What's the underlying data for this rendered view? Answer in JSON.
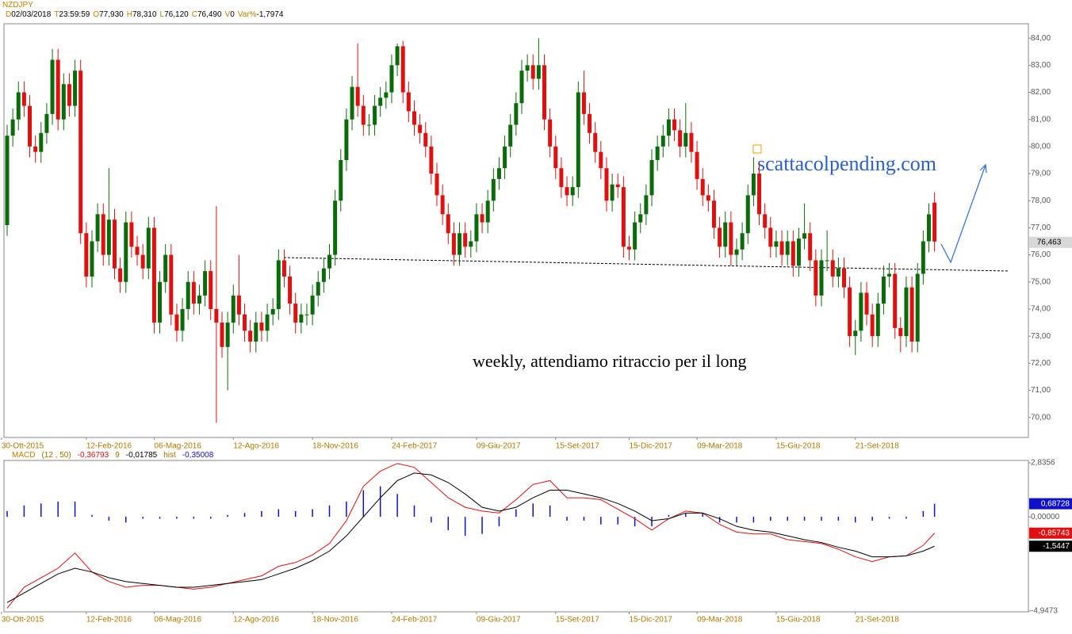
{
  "header": {
    "symbol": "NZDJPY",
    "fields": [
      {
        "key": "D",
        "value": "02/03/2018"
      },
      {
        "key": "T",
        "value": "23:59:59"
      },
      {
        "key": "O",
        "value": "77,930"
      },
      {
        "key": "H",
        "value": "78,310"
      },
      {
        "key": "L",
        "value": "76,120"
      },
      {
        "key": "C",
        "value": "76,490"
      },
      {
        "key": "V",
        "value": "0"
      },
      {
        "key": "Var%",
        "value": "-1,7974"
      }
    ]
  },
  "annotations": {
    "watermark": "scattacolpending.com",
    "note": "weekly, attendiamo ritraccio per il long"
  },
  "chart_data": [
    {
      "type": "candlestick",
      "up_color": "#0b6b0b",
      "down_color": "#e01010",
      "xlim": [
        -0.56,
        180.6
      ],
      "xticks": [
        {
          "value": -1,
          "label": "30-Ott-2015"
        },
        {
          "value": 14,
          "label": "12-Feb-2016"
        },
        {
          "value": 26,
          "label": "06-Mag-2016"
        },
        {
          "value": 40,
          "label": "12-Ago-2016"
        },
        {
          "value": 54,
          "label": "18-Nov-2016"
        },
        {
          "value": 68,
          "label": "24-Feb-2017"
        },
        {
          "value": 83,
          "label": "09-Giu-2017"
        },
        {
          "value": 97,
          "label": "15-Set-2017"
        },
        {
          "value": 110,
          "label": "15-Dic-2017"
        },
        {
          "value": 122,
          "label": "09-Mar-2018"
        },
        {
          "value": 136,
          "label": "15-Giu-2018"
        },
        {
          "value": 150,
          "label": "21-Set-2018"
        }
      ],
      "ylim": [
        69.26,
        84.53
      ],
      "yticks": [
        {
          "value": 70,
          "label": "70,00"
        },
        {
          "value": 71,
          "label": "71,00"
        },
        {
          "value": 72,
          "label": "72,00"
        },
        {
          "value": 73,
          "label": "73,00"
        },
        {
          "value": 74,
          "label": "74,00"
        },
        {
          "value": 75,
          "label": "75,00"
        },
        {
          "value": 76,
          "label": "76,00"
        },
        {
          "value": 77,
          "label": "77,00"
        },
        {
          "value": 78,
          "label": "78,00"
        },
        {
          "value": 79,
          "label": "79,00"
        },
        {
          "value": 80,
          "label": "80,00"
        },
        {
          "value": 81,
          "label": "81,00"
        },
        {
          "value": 82,
          "label": "82,00"
        },
        {
          "value": 83,
          "label": "83,00"
        },
        {
          "value": 84,
          "label": "84,00"
        }
      ],
      "price_marker": {
        "value": 76.463,
        "label": "76,463"
      },
      "open": [
        77.1,
        80.4,
        81.0,
        82.0,
        81.5,
        80.0,
        79.8,
        80.5,
        81.2,
        83.2,
        81.0,
        82.3,
        81.5,
        82.8,
        76.8,
        75.2,
        76.5,
        77.5,
        76.0,
        77.3,
        75.5,
        75.0,
        77.2,
        76.3,
        76.0,
        75.5,
        77.0,
        73.5,
        75.0,
        76.0,
        73.8,
        73.2,
        74.0,
        75.0,
        74.2,
        74.5,
        75.4,
        74.0,
        73.5,
        72.6,
        73.5,
        74.5,
        73.8,
        73.2,
        72.8,
        73.5,
        73.2,
        73.8,
        74.0,
        75.8,
        75.2,
        74.2,
        73.5,
        73.8,
        73.8,
        74.5,
        75.0,
        75.5,
        76.0,
        78.0,
        79.5,
        81.0,
        82.2,
        81.5,
        80.8,
        80.8,
        81.5,
        81.8,
        82.0,
        83.0,
        83.7,
        82.0,
        81.3,
        80.8,
        80.5,
        80.0,
        79.0,
        78.2,
        77.5,
        76.8,
        76.0,
        76.8,
        76.3,
        76.5,
        77.5,
        77.2,
        78.0,
        78.8,
        79.2,
        80.0,
        80.8,
        81.6,
        82.8,
        83.0,
        82.5,
        83.0,
        81.0,
        80.0,
        79.2,
        78.5,
        78.2,
        78.5,
        82.0,
        81.2,
        80.5,
        79.8,
        79.2,
        78.0,
        78.6,
        78.5,
        76.3,
        76.2,
        77.2,
        77.5,
        78.2,
        79.5,
        80.0,
        80.4,
        81.0,
        80.6,
        80.0,
        80.5,
        79.8,
        78.8,
        78.2,
        78.0,
        77.0,
        76.3,
        77.2,
        76.0,
        76.2,
        76.8,
        78.2,
        79.0,
        77.5,
        77.0,
        76.3,
        76.5,
        76.0,
        76.5,
        75.6,
        76.6,
        76.8,
        75.8,
        74.5,
        75.8,
        75.8,
        75.2,
        75.5,
        74.8,
        73.0,
        73.2,
        74.6,
        73.8,
        73.0,
        74.2,
        75.2,
        75.3,
        73.3,
        73.0,
        74.8,
        72.8,
        75.3,
        76.5,
        77.93
      ],
      "high": [
        80.8,
        81.4,
        82.4,
        82.4,
        81.9,
        80.4,
        80.9,
        81.6,
        83.6,
        83.6,
        82.7,
        82.7,
        83.2,
        83.2,
        77.2,
        76.9,
        77.9,
        77.9,
        79.2,
        77.7,
        75.9,
        77.6,
        77.6,
        76.7,
        76.4,
        77.4,
        77.4,
        75.4,
        76.4,
        76.4,
        74.2,
        74.4,
        75.4,
        75.4,
        74.9,
        75.8,
        75.8,
        77.8,
        73.9,
        73.9,
        74.9,
        76.0,
        74.2,
        73.6,
        73.9,
        73.9,
        74.2,
        74.4,
        76.2,
        76.2,
        75.6,
        74.6,
        74.2,
        74.2,
        74.9,
        75.4,
        75.9,
        76.4,
        78.4,
        79.9,
        81.4,
        82.6,
        83.8,
        81.9,
        81.2,
        81.9,
        82.2,
        82.4,
        83.4,
        83.8,
        83.9,
        82.4,
        81.7,
        81.2,
        80.9,
        80.4,
        79.4,
        78.6,
        77.9,
        77.2,
        77.2,
        77.2,
        76.9,
        77.9,
        77.9,
        78.4,
        79.2,
        79.6,
        80.4,
        81.2,
        82.0,
        83.2,
        83.4,
        83.4,
        84.0,
        83.4,
        81.4,
        80.4,
        79.6,
        78.9,
        78.9,
        82.4,
        82.8,
        81.6,
        80.9,
        80.2,
        79.6,
        79.0,
        79.0,
        78.9,
        76.7,
        77.6,
        77.9,
        78.6,
        79.9,
        80.4,
        80.8,
        81.4,
        81.4,
        81.0,
        81.6,
        80.9,
        80.2,
        79.2,
        78.6,
        78.4,
        77.4,
        77.6,
        77.6,
        76.6,
        77.2,
        78.6,
        79.6,
        79.4,
        77.9,
        77.4,
        76.9,
        76.9,
        76.9,
        76.9,
        77.0,
        77.9,
        77.2,
        76.2,
        76.2,
        76.9,
        76.2,
        75.9,
        75.9,
        75.2,
        73.6,
        75.0,
        75.0,
        74.2,
        74.6,
        75.6,
        75.7,
        75.7,
        73.7,
        75.2,
        75.2,
        75.7,
        76.9,
        77.9,
        78.31
      ],
      "low": [
        76.7,
        80.0,
        80.6,
        81.1,
        79.6,
        79.4,
        79.4,
        80.1,
        80.8,
        80.6,
        80.6,
        81.1,
        81.1,
        76.4,
        74.8,
        74.8,
        76.1,
        75.6,
        75.6,
        75.1,
        74.6,
        74.6,
        75.9,
        75.6,
        75.1,
        75.1,
        73.1,
        73.1,
        74.6,
        73.4,
        72.8,
        72.8,
        73.6,
        73.8,
        73.8,
        74.1,
        73.6,
        69.8,
        72.2,
        71.0,
        73.1,
        73.4,
        72.8,
        72.4,
        72.4,
        72.8,
        72.8,
        73.4,
        73.6,
        74.8,
        73.8,
        73.1,
        73.1,
        73.4,
        73.4,
        74.1,
        74.6,
        75.1,
        75.6,
        77.6,
        79.1,
        80.6,
        81.1,
        80.4,
        80.4,
        80.4,
        81.1,
        81.4,
        81.6,
        82.6,
        81.6,
        80.9,
        80.4,
        80.1,
        79.6,
        78.6,
        77.8,
        77.1,
        76.4,
        75.6,
        75.6,
        75.9,
        75.9,
        76.1,
        76.8,
        76.8,
        77.6,
        78.4,
        78.8,
        79.6,
        80.4,
        81.2,
        82.4,
        82.1,
        82.1,
        80.6,
        79.6,
        78.8,
        78.1,
        77.8,
        77.8,
        78.1,
        80.8,
        80.1,
        79.4,
        78.8,
        77.6,
        77.6,
        78.1,
        75.9,
        75.8,
        75.8,
        76.8,
        77.1,
        77.8,
        79.1,
        79.6,
        80.0,
        80.2,
        79.6,
        79.6,
        79.4,
        78.4,
        77.8,
        77.6,
        76.6,
        75.9,
        75.9,
        75.6,
        75.6,
        75.8,
        76.4,
        77.8,
        77.1,
        76.6,
        75.9,
        75.9,
        75.6,
        75.6,
        75.2,
        75.2,
        76.2,
        75.4,
        74.1,
        74.1,
        75.4,
        74.8,
        74.8,
        74.4,
        72.6,
        72.3,
        72.8,
        73.4,
        72.6,
        72.6,
        73.8,
        74.8,
        72.9,
        72.4,
        72.6,
        72.4,
        72.4,
        74.9,
        76.1,
        76.12
      ],
      "close": [
        80.4,
        81.0,
        82.0,
        81.5,
        80.0,
        79.8,
        80.5,
        81.2,
        83.2,
        81.0,
        82.3,
        81.5,
        82.8,
        76.8,
        75.2,
        76.5,
        77.5,
        76.0,
        77.3,
        75.5,
        75.0,
        77.2,
        76.3,
        76.0,
        75.5,
        77.0,
        73.5,
        75.0,
        76.0,
        73.8,
        73.2,
        74.0,
        75.0,
        74.2,
        74.5,
        75.4,
        74.0,
        73.5,
        72.6,
        73.5,
        74.5,
        73.8,
        73.2,
        72.8,
        73.5,
        73.2,
        73.8,
        74.0,
        75.8,
        75.2,
        74.2,
        73.5,
        73.8,
        73.8,
        74.5,
        75.0,
        75.5,
        76.0,
        78.0,
        79.5,
        81.0,
        82.2,
        81.5,
        80.8,
        80.8,
        81.5,
        81.8,
        82.0,
        83.0,
        83.7,
        82.0,
        81.3,
        80.8,
        80.5,
        80.0,
        79.0,
        78.2,
        77.5,
        76.8,
        76.0,
        76.8,
        76.3,
        76.5,
        77.5,
        77.2,
        78.0,
        78.8,
        79.2,
        80.0,
        80.8,
        81.6,
        82.8,
        83.0,
        82.5,
        83.0,
        81.0,
        80.0,
        79.2,
        78.5,
        78.2,
        78.5,
        82.0,
        81.2,
        80.5,
        79.8,
        79.2,
        78.0,
        78.6,
        78.5,
        76.3,
        76.2,
        77.2,
        77.5,
        78.2,
        79.5,
        80.0,
        80.4,
        81.0,
        80.6,
        80.0,
        80.5,
        79.8,
        78.8,
        78.2,
        78.0,
        77.0,
        76.3,
        77.2,
        76.0,
        76.2,
        76.8,
        78.2,
        79.0,
        77.5,
        77.0,
        76.3,
        76.5,
        76.0,
        76.5,
        75.6,
        76.6,
        76.8,
        75.8,
        74.5,
        75.8,
        75.8,
        75.2,
        75.5,
        74.8,
        73.0,
        73.2,
        74.6,
        73.8,
        73.0,
        74.2,
        75.2,
        75.3,
        73.3,
        73.0,
        74.8,
        72.8,
        75.3,
        76.5,
        77.5,
        76.49
      ]
    },
    {
      "type": "line",
      "header": [
        "MACD",
        "(12 , 50)",
        "-0,36793",
        "9",
        "-0,01785",
        "hist",
        "-0,35008"
      ],
      "ylim": [
        -4.9473,
        2.8356
      ],
      "yticks": [
        {
          "value": 2.8356,
          "label": "2,8356"
        },
        {
          "value": 0,
          "label": "0,00000"
        },
        {
          "value": -4.9473,
          "label": "-4,9473"
        }
      ],
      "x": [
        0,
        3,
        6,
        9,
        12,
        15,
        18,
        21,
        24,
        27,
        30,
        33,
        36,
        39,
        42,
        45,
        48,
        51,
        54,
        57,
        60,
        63,
        66,
        69,
        72,
        75,
        78,
        81,
        84,
        87,
        90,
        93,
        96,
        99,
        102,
        105,
        108,
        111,
        114,
        117,
        120,
        123,
        126,
        129,
        132,
        135,
        138,
        141,
        144,
        147,
        150,
        153,
        156,
        159,
        162,
        164
      ],
      "series": [
        {
          "style": "bars",
          "color": "#1010c8",
          "last_label": "0,68728",
          "values": [
            0.3,
            0.6,
            0.7,
            0.8,
            0.8,
            0.1,
            -0.2,
            -0.3,
            -0.1,
            -0.1,
            -0.1,
            -0.1,
            -0.1,
            0.1,
            0.2,
            0.3,
            0.4,
            0.3,
            0.4,
            0.6,
            0.8,
            1.4,
            1.6,
            1.2,
            0.6,
            -0.3,
            -0.7,
            -1.0,
            -0.9,
            -0.5,
            0.4,
            0.7,
            0.6,
            -0.2,
            -0.2,
            -0.4,
            -0.4,
            -0.5,
            -0.5,
            0.1,
            0.2,
            0.2,
            -0.3,
            -0.3,
            -0.3,
            -0.2,
            -0.2,
            -0.2,
            -0.2,
            -0.2,
            -0.3,
            -0.2,
            -0.1,
            -0.1,
            0.3,
            0.68728
          ]
        },
        {
          "style": "line",
          "color": "#e01010",
          "last_label": "-0,85743",
          "values": [
            -4.8,
            -3.7,
            -3.2,
            -2.7,
            -1.9,
            -2.9,
            -3.4,
            -3.7,
            -3.6,
            -3.6,
            -3.7,
            -3.8,
            -3.7,
            -3.5,
            -3.3,
            -3.1,
            -2.6,
            -2.4,
            -2.0,
            -1.4,
            -0.2,
            1.6,
            2.4,
            2.8,
            2.6,
            1.8,
            1.0,
            0.5,
            0.3,
            0.2,
            0.9,
            1.7,
            1.9,
            1.0,
            1.0,
            0.9,
            0.4,
            -0.1,
            -0.7,
            -0.1,
            0.3,
            0.2,
            -0.4,
            -0.8,
            -0.9,
            -0.9,
            -1.2,
            -1.3,
            -1.4,
            -1.7,
            -2.1,
            -2.35,
            -2.1,
            -2.05,
            -1.5,
            -0.85743
          ]
        },
        {
          "style": "line",
          "color": "#000000",
          "last_label": "-1,5447",
          "values": [
            -4.5,
            -4.0,
            -3.5,
            -3.0,
            -2.7,
            -2.9,
            -3.2,
            -3.4,
            -3.5,
            -3.6,
            -3.7,
            -3.7,
            -3.6,
            -3.5,
            -3.4,
            -3.3,
            -3.0,
            -2.7,
            -2.3,
            -1.8,
            -1.0,
            0.0,
            1.0,
            1.9,
            2.3,
            2.2,
            1.8,
            1.2,
            0.5,
            0.3,
            0.5,
            1.0,
            1.4,
            1.4,
            1.2,
            1.0,
            0.7,
            0.3,
            -0.2,
            -0.1,
            0.2,
            0.2,
            -0.1,
            -0.5,
            -0.7,
            -0.8,
            -1.0,
            -1.2,
            -1.35,
            -1.6,
            -1.8,
            -2.1,
            -2.1,
            -2.05,
            -1.8,
            -1.5447
          ]
        }
      ]
    }
  ]
}
